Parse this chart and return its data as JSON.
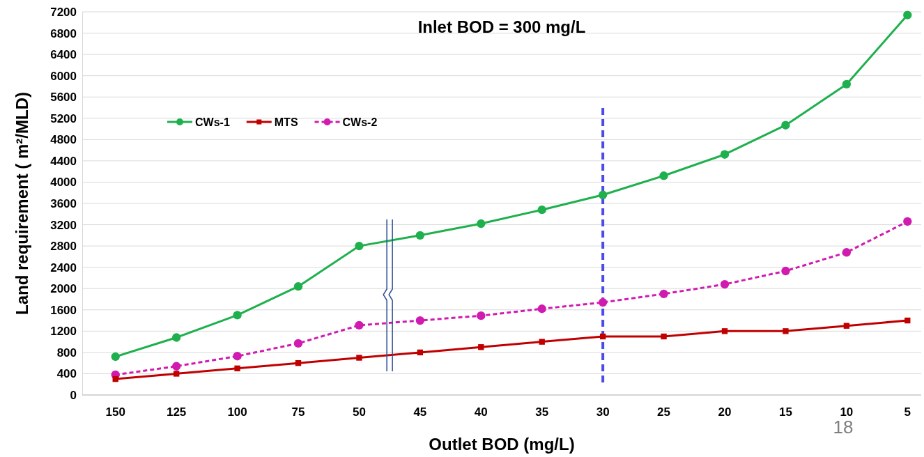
{
  "chart_data": {
    "type": "line",
    "title": "Inlet BOD = 300 mg/L",
    "xlabel": "Outlet BOD (mg/L)",
    "ylabel": "Land requirement ( m²/MLD)",
    "categories": [
      "150",
      "125",
      "100",
      "75",
      "50",
      "45",
      "40",
      "35",
      "30",
      "25",
      "20",
      "15",
      "10",
      "5"
    ],
    "series": [
      {
        "name": "CWs-1",
        "color": "#1fb04e",
        "marker": "circle",
        "line_style": "solid",
        "values": [
          720,
          1080,
          1500,
          2040,
          2800,
          3000,
          3220,
          3480,
          3760,
          4120,
          4520,
          5070,
          5840,
          7140
        ]
      },
      {
        "name": "MTS",
        "color": "#c00000",
        "marker": "square",
        "line_style": "solid",
        "values": [
          300,
          400,
          500,
          600,
          700,
          800,
          900,
          1000,
          1100,
          1100,
          1200,
          1200,
          1300,
          1400
        ]
      },
      {
        "name": "CWs-2",
        "color": "#d01ab0",
        "marker": "circle",
        "line_style": "dashed",
        "values": [
          380,
          540,
          730,
          970,
          1310,
          1400,
          1490,
          1620,
          1740,
          1900,
          2080,
          2330,
          2680,
          3260
        ]
      }
    ],
    "ylim": [
      0,
      7200
    ],
    "yticks": [
      0,
      400,
      800,
      1200,
      1600,
      2000,
      2400,
      2800,
      3200,
      3600,
      4000,
      4400,
      4800,
      5200,
      5600,
      6000,
      6400,
      6800,
      7200
    ],
    "grid": "y",
    "legend": "top left",
    "ref_lines": [
      {
        "axis": "x",
        "value": "30",
        "color": "#4b4bea",
        "line_style": "dashed"
      }
    ],
    "annotations": [
      "18"
    ]
  }
}
